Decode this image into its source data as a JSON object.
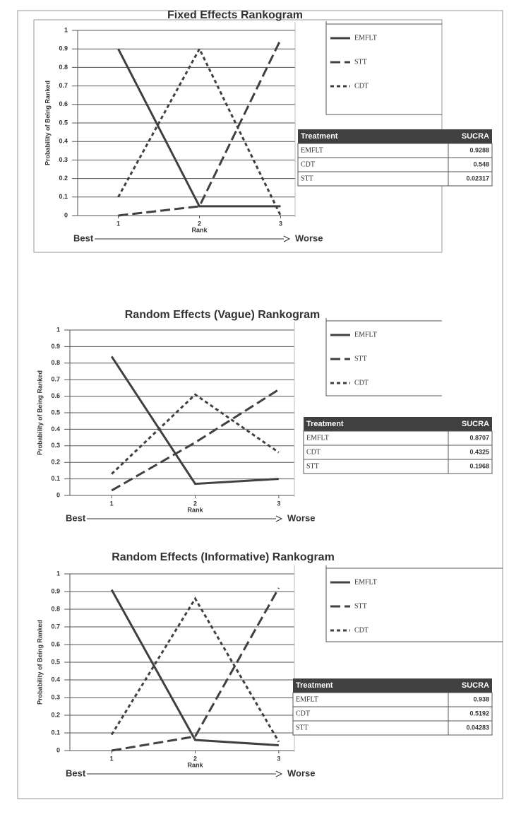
{
  "chart_data": [
    {
      "type": "line",
      "title": "Fixed Effects Rankogram",
      "categories": [
        "1",
        "2",
        "3"
      ],
      "xlabel": "Rank",
      "ylabel": "Probability of Being Ranked",
      "annotations": [
        "Best",
        "Worse"
      ],
      "ylim": [
        0,
        1
      ],
      "yticks": [
        0,
        0.1,
        0.2,
        0.3,
        0.4,
        0.5,
        0.6,
        0.7,
        0.8,
        0.9,
        1
      ],
      "grid": true,
      "series": [
        {
          "name": "EMFLT",
          "color": "#404040",
          "line_style": "solid",
          "values": [
            0.9,
            0.05,
            0.05
          ]
        },
        {
          "name": "STT",
          "color": "#404040",
          "line_style": "long-dash",
          "values": [
            0,
            0.05,
            0.95
          ]
        },
        {
          "name": "CDT",
          "color": "#404040",
          "line_style": "short-dash",
          "values": [
            0.1,
            0.9,
            0
          ]
        }
      ],
      "table": {
        "columns": [
          "Treatment",
          "SUCRA"
        ],
        "rows": [
          [
            "EMFLT",
            0.9288
          ],
          [
            "CDT",
            0.548
          ],
          [
            "STT",
            0.02317
          ]
        ]
      }
    },
    {
      "type": "line",
      "title": "Random Effects (Vague) Rankogram",
      "categories": [
        "1",
        "2",
        "3"
      ],
      "xlabel": "Rank",
      "ylabel": "Probability of Being Ranked",
      "annotations": [
        "Best",
        "Worse"
      ],
      "ylim": [
        0,
        1
      ],
      "yticks": [
        0,
        0.1,
        0.2,
        0.3,
        0.4,
        0.5,
        0.6,
        0.7,
        0.8,
        0.9,
        1
      ],
      "grid": true,
      "series": [
        {
          "name": "EMFLT",
          "color": "#404040",
          "line_style": "solid",
          "values": [
            0.84,
            0.07,
            0.1
          ]
        },
        {
          "name": "STT",
          "color": "#404040",
          "line_style": "long-dash",
          "values": [
            0.03,
            0.32,
            0.64
          ]
        },
        {
          "name": "CDT",
          "color": "#404040",
          "line_style": "short-dash",
          "values": [
            0.13,
            0.61,
            0.26
          ]
        }
      ],
      "table": {
        "columns": [
          "Treatment",
          "SUCRA"
        ],
        "rows": [
          [
            "EMFLT",
            0.8707
          ],
          [
            "CDT",
            0.4325
          ],
          [
            "STT",
            0.1968
          ]
        ]
      }
    },
    {
      "type": "line",
      "title": "Random Effects (Informative) Rankogram",
      "categories": [
        "1",
        "2",
        "3"
      ],
      "xlabel": "Rank",
      "ylabel": "Probability of Being Ranked",
      "annotations": [
        "Best",
        "Worse"
      ],
      "ylim": [
        0,
        1
      ],
      "yticks": [
        0,
        0.1,
        0.2,
        0.3,
        0.4,
        0.5,
        0.6,
        0.7,
        0.8,
        0.9,
        1
      ],
      "grid": true,
      "series": [
        {
          "name": "EMFLT",
          "color": "#404040",
          "line_style": "solid",
          "values": [
            0.91,
            0.06,
            0.03
          ]
        },
        {
          "name": "STT",
          "color": "#404040",
          "line_style": "long-dash",
          "values": [
            0,
            0.08,
            0.92
          ]
        },
        {
          "name": "CDT",
          "color": "#404040",
          "line_style": "short-dash",
          "values": [
            0.09,
            0.86,
            0.05
          ]
        }
      ],
      "table": {
        "columns": [
          "Treatment",
          "SUCRA"
        ],
        "rows": [
          [
            "EMFLT",
            0.938
          ],
          [
            "CDT",
            0.5192
          ],
          [
            "STT",
            0.04283
          ]
        ]
      }
    }
  ]
}
